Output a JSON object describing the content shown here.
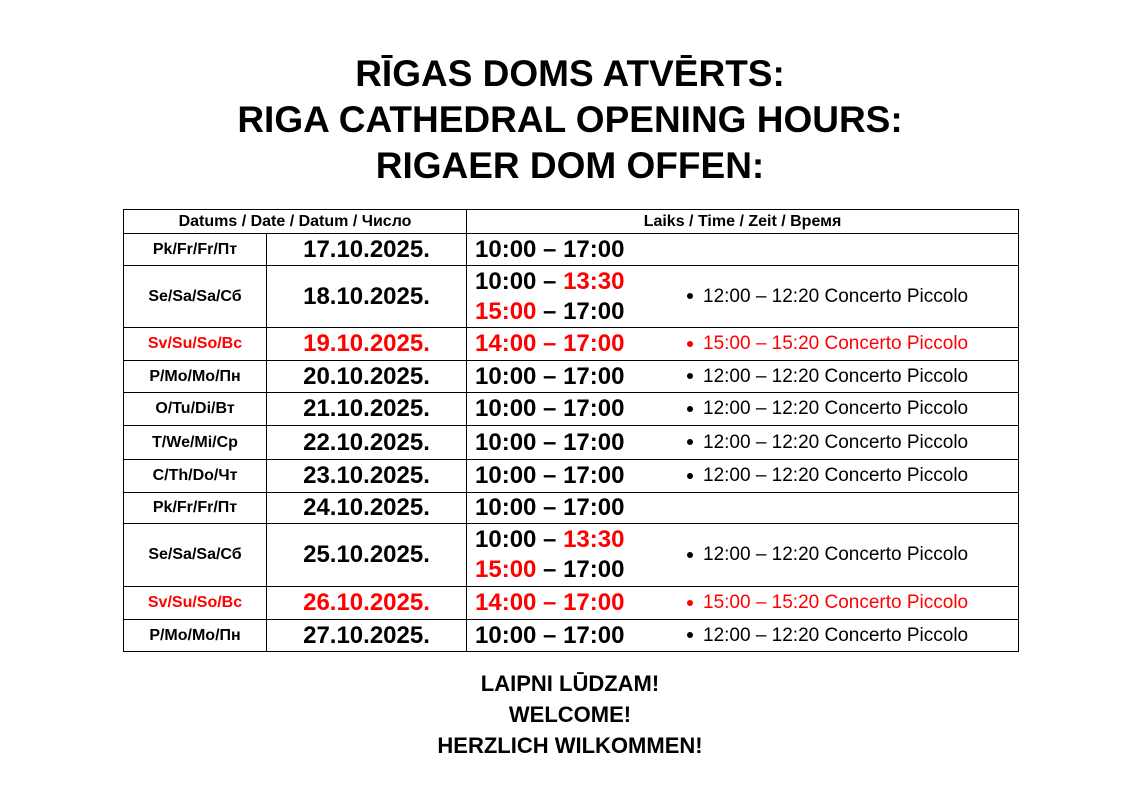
{
  "titles": [
    "RĪGAS DOMS ATVĒRTS:",
    "RIGA CATHEDRAL OPENING HOURS:",
    "RIGAER DOM OFFEN:"
  ],
  "header": {
    "date_col": "Datums / Date / Datum / Число",
    "time_col": "Laiks / Time / Zeit / Время"
  },
  "colors": {
    "highlight": "#ff0000"
  },
  "rows": [
    {
      "day": "Pk/Fr/Fr/Пт",
      "date": "17.10.2025.",
      "red": false,
      "lines": [
        [
          [
            "10:00 – 17:00",
            false
          ]
        ]
      ],
      "event": ""
    },
    {
      "day": "Se/Sa/Sa/Сб",
      "date": "18.10.2025.",
      "red": false,
      "lines": [
        [
          [
            "10:00 – ",
            false
          ],
          [
            "13:30",
            true
          ]
        ],
        [
          [
            "15:00",
            true
          ],
          [
            " – 17:00",
            false
          ]
        ]
      ],
      "event": "12:00 – 12:20 Concerto Piccolo"
    },
    {
      "day": "Sv/Su/So/Вс",
      "date": "19.10.2025.",
      "red": true,
      "lines": [
        [
          [
            "14:00 – 17:00",
            true
          ]
        ]
      ],
      "event": "15:00 – 15:20 Concerto Piccolo"
    },
    {
      "day": "P/Mo/Mo/Пн",
      "date": "20.10.2025.",
      "red": false,
      "lines": [
        [
          [
            "10:00 – 17:00",
            false
          ]
        ]
      ],
      "event": "12:00 – 12:20 Concerto Piccolo"
    },
    {
      "day": "O/Tu/Di/Вт",
      "date": "21.10.2025.",
      "red": false,
      "lines": [
        [
          [
            "10:00 – 17:00",
            false
          ]
        ]
      ],
      "event": "12:00 – 12:20 Concerto Piccolo"
    },
    {
      "day": "T/We/Mi/Ср",
      "date": "22.10.2025.",
      "red": false,
      "lines": [
        [
          [
            "10:00 – 17:00",
            false
          ]
        ]
      ],
      "event": "12:00 – 12:20 Concerto Piccolo"
    },
    {
      "day": "C/Th/Do/Чт",
      "date": "23.10.2025.",
      "red": false,
      "lines": [
        [
          [
            "10:00 – 17:00",
            false
          ]
        ]
      ],
      "event": "12:00 – 12:20 Concerto Piccolo"
    },
    {
      "day": "Pk/Fr/Fr/Пт",
      "date": "24.10.2025.",
      "red": false,
      "lines": [
        [
          [
            "10:00 – 17:00",
            false
          ]
        ]
      ],
      "event": ""
    },
    {
      "day": "Se/Sa/Sa/Сб",
      "date": "25.10.2025.",
      "red": false,
      "lines": [
        [
          [
            "10:00 – ",
            false
          ],
          [
            "13:30",
            true
          ]
        ],
        [
          [
            "15:00",
            true
          ],
          [
            " – 17:00",
            false
          ]
        ]
      ],
      "event": "12:00 – 12:20 Concerto Piccolo"
    },
    {
      "day": "Sv/Su/So/Вс",
      "date": "26.10.2025.",
      "red": true,
      "lines": [
        [
          [
            "14:00 – 17:00",
            true
          ]
        ]
      ],
      "event": "15:00 – 15:20 Concerto Piccolo"
    },
    {
      "day": "P/Mo/Mo/Пн",
      "date": "27.10.2025.",
      "red": false,
      "lines": [
        [
          [
            "10:00 – 17:00",
            false
          ]
        ]
      ],
      "event": "12:00 – 12:20 Concerto Piccolo"
    }
  ],
  "footer": [
    "LAIPNI LŪDZAM!",
    "WELCOME!",
    "HERZLICH WILKOMMEN!"
  ]
}
